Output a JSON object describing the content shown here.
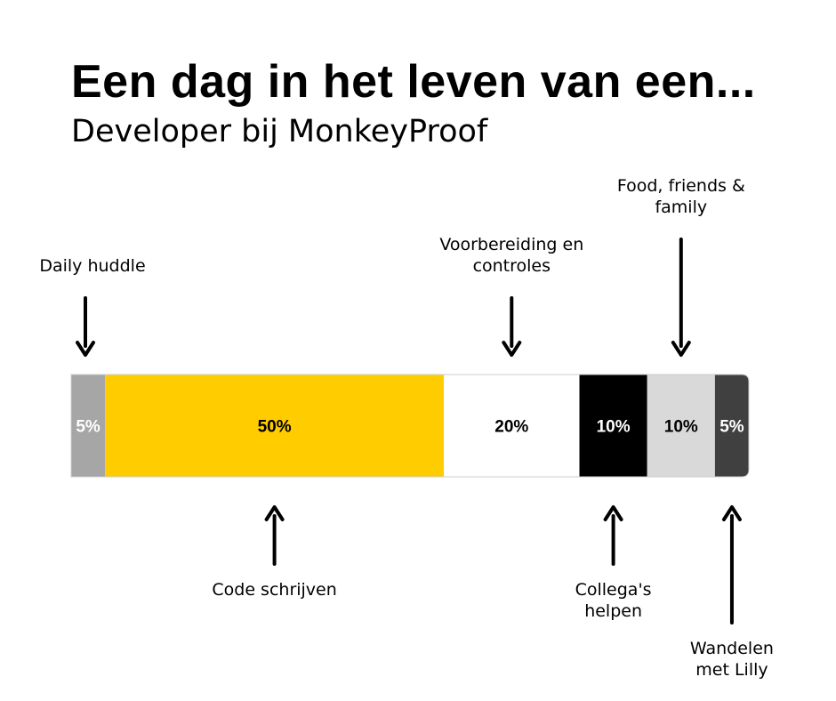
{
  "header": {
    "title": "Een dag in het leven van een...",
    "subtitle": "Developer bij MonkeyProof"
  },
  "chart_data": {
    "type": "bar",
    "orientation": "horizontal-stacked",
    "categories": [
      "Daily huddle",
      "Code schrijven",
      "Voorbereiding en controles",
      "Collega's helpen",
      "Food, friends & family",
      "Wandelen met Lilly"
    ],
    "values": [
      5,
      50,
      20,
      10,
      10,
      5
    ],
    "value_labels": [
      "5%",
      "50%",
      "20%",
      "10%",
      "10%",
      "5%"
    ],
    "unit": "%",
    "colors": [
      "#a6a6a6",
      "#ffcc00",
      "#ffffff",
      "#000000",
      "#d9d9d9",
      "#404040"
    ],
    "label_colors": [
      "#ffffff",
      "#000000",
      "#000000",
      "#ffffff",
      "#000000",
      "#ffffff"
    ],
    "annotation_lines": [
      [
        "Daily huddle"
      ],
      [
        "Code schrijven"
      ],
      [
        "Voorbereiding en",
        "controles"
      ],
      [
        "Collega's",
        "helpen"
      ],
      [
        "Food, friends &",
        "family"
      ],
      [
        "Wandelen",
        "met Lilly"
      ]
    ],
    "annotation_side": [
      "top",
      "bottom",
      "top",
      "bottom",
      "top",
      "bottom"
    ],
    "xlim": [
      0,
      100
    ]
  }
}
